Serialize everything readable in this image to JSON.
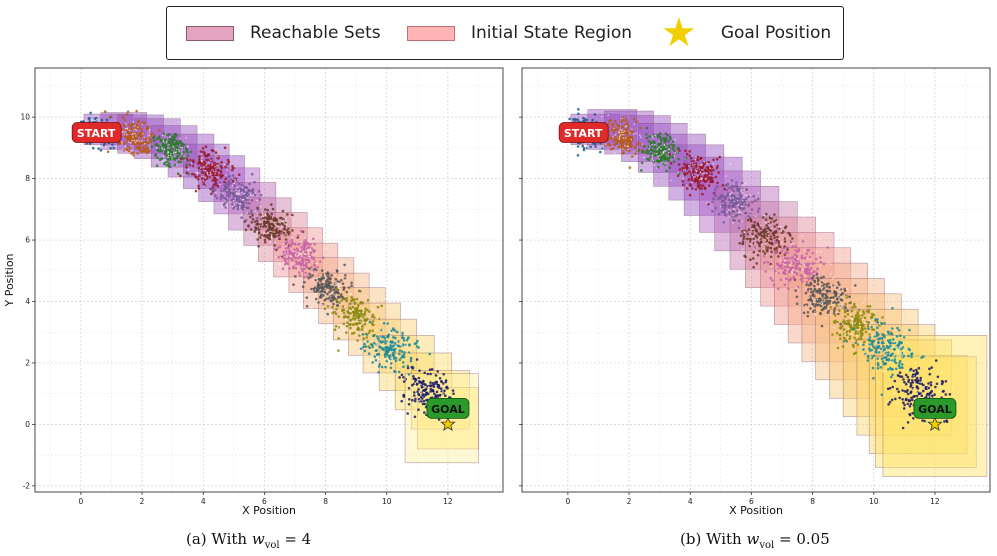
{
  "legend": {
    "items": [
      {
        "label": "Reachable Sets",
        "color": "#e4a4c0",
        "border": "#8a5a70"
      },
      {
        "label": "Initial State Region",
        "color": "#ffb3b3",
        "border": "#c07070"
      },
      {
        "label": "Goal Position",
        "color": "#f2cf00",
        "icon": "star-icon"
      }
    ]
  },
  "chart_data": [
    {
      "type": "scatter",
      "xlabel": "X Position",
      "ylabel": "Y Position",
      "xlim": [
        -1.5,
        13.8
      ],
      "ylim": [
        -2.2,
        11.6
      ],
      "xticks": [
        0,
        2,
        4,
        6,
        8,
        10,
        12
      ],
      "yticks": [
        -2,
        0,
        2,
        4,
        6,
        8,
        10
      ],
      "grid": true,
      "start": {
        "label": "START",
        "x": 0.5,
        "y": 9.5
      },
      "goal": {
        "label": "GOAL",
        "x": 12,
        "y": 0
      },
      "caption": {
        "prefix": "(a) With",
        "var": "w",
        "sub": "vol",
        "rhs": "= 4"
      },
      "cluster_colors": [
        "#1f5a8a",
        "#b85a18",
        "#2a7a2a",
        "#9a1a2a",
        "#7a5a9a",
        "#6a3a2a",
        "#c864a8",
        "#565656",
        "#8a8a10",
        "#1a8a9a",
        "#1a1a6a"
      ],
      "clusters": [
        {
          "x": 0.55,
          "y": 9.5,
          "spread": 0.32
        },
        {
          "x": 1.75,
          "y": 9.35,
          "spread": 0.33
        },
        {
          "x": 2.95,
          "y": 8.95,
          "spread": 0.34
        },
        {
          "x": 4.15,
          "y": 8.3,
          "spread": 0.35
        },
        {
          "x": 5.2,
          "y": 7.45,
          "spread": 0.36
        },
        {
          "x": 6.2,
          "y": 6.45,
          "spread": 0.37
        },
        {
          "x": 7.15,
          "y": 5.55,
          "spread": 0.38
        },
        {
          "x": 8.05,
          "y": 4.45,
          "spread": 0.39
        },
        {
          "x": 9.05,
          "y": 3.5,
          "spread": 0.4
        },
        {
          "x": 10.1,
          "y": 2.5,
          "spread": 0.42
        },
        {
          "x": 11.35,
          "y": 1.05,
          "spread": 0.45
        }
      ],
      "boxes": [
        {
          "cx": 0.9,
          "cy": 9.6,
          "w": 1.6,
          "h": 1.0,
          "color": "#9a50c0"
        },
        {
          "cx": 1.4,
          "cy": 9.55,
          "w": 1.5,
          "h": 1.2,
          "color": "#9a50c0"
        },
        {
          "cx": 1.95,
          "cy": 9.45,
          "w": 1.5,
          "h": 1.25,
          "color": "#9a50c0"
        },
        {
          "cx": 2.5,
          "cy": 9.3,
          "w": 1.5,
          "h": 1.3,
          "color": "#9a50c0"
        },
        {
          "cx": 3.05,
          "cy": 9.05,
          "w": 1.5,
          "h": 1.35,
          "color": "#9a50c0"
        },
        {
          "cx": 3.6,
          "cy": 8.75,
          "w": 1.5,
          "h": 1.4,
          "color": "#9a50c0"
        },
        {
          "cx": 4.1,
          "cy": 8.4,
          "w": 1.5,
          "h": 1.45,
          "color": "#9a50c0"
        },
        {
          "cx": 4.6,
          "cy": 8.0,
          "w": 1.5,
          "h": 1.5,
          "color": "#9a50c0"
        },
        {
          "cx": 5.1,
          "cy": 7.6,
          "w": 1.5,
          "h": 1.5,
          "color": "#b060c8"
        },
        {
          "cx": 5.6,
          "cy": 7.1,
          "w": 1.55,
          "h": 1.55,
          "color": "#b86ab8"
        },
        {
          "cx": 6.1,
          "cy": 6.6,
          "w": 1.55,
          "h": 1.55,
          "color": "#c87aa8"
        },
        {
          "cx": 6.6,
          "cy": 6.1,
          "w": 1.6,
          "h": 1.6,
          "color": "#e08a9a"
        },
        {
          "cx": 7.1,
          "cy": 5.6,
          "w": 1.6,
          "h": 1.6,
          "color": "#ef9696"
        },
        {
          "cx": 7.6,
          "cy": 5.1,
          "w": 1.6,
          "h": 1.6,
          "color": "#f2a090"
        },
        {
          "cx": 8.1,
          "cy": 4.6,
          "w": 1.65,
          "h": 1.65,
          "color": "#f4aa8a"
        },
        {
          "cx": 8.6,
          "cy": 4.1,
          "w": 1.65,
          "h": 1.65,
          "color": "#f6b684"
        },
        {
          "cx": 9.1,
          "cy": 3.6,
          "w": 1.7,
          "h": 1.7,
          "color": "#f8c27e"
        },
        {
          "cx": 9.6,
          "cy": 3.1,
          "w": 1.7,
          "h": 1.7,
          "color": "#fac878"
        },
        {
          "cx": 10.1,
          "cy": 2.55,
          "w": 1.75,
          "h": 1.75,
          "color": "#fbd070"
        },
        {
          "cx": 10.65,
          "cy": 2.0,
          "w": 1.8,
          "h": 1.8,
          "color": "#fcd86a"
        },
        {
          "cx": 11.2,
          "cy": 1.4,
          "w": 1.85,
          "h": 1.85,
          "color": "#fddc68"
        },
        {
          "cx": 11.75,
          "cy": 0.8,
          "w": 1.9,
          "h": 1.9,
          "color": "#fee066"
        },
        {
          "cx": 12.0,
          "cy": 0.2,
          "w": 2.0,
          "h": 2.0,
          "color": "#fee466"
        },
        {
          "cx": 11.8,
          "cy": 0.2,
          "w": 2.4,
          "h": 2.9,
          "color": "#fff0a0"
        }
      ]
    },
    {
      "type": "scatter",
      "xlabel": "X Position",
      "ylabel": "",
      "xlim": [
        -1.5,
        13.8
      ],
      "ylim": [
        -2.2,
        11.6
      ],
      "xticks": [
        0,
        2,
        4,
        6,
        8,
        10,
        12
      ],
      "yticks": [
        -2,
        0,
        2,
        4,
        6,
        8,
        10
      ],
      "grid": true,
      "start": {
        "label": "START",
        "x": 0.5,
        "y": 9.5
      },
      "goal": {
        "label": "GOAL",
        "x": 12,
        "y": 0
      },
      "caption": {
        "prefix": "(b) With",
        "var": "w",
        "sub": "vol",
        "rhs": "= 0.05"
      },
      "cluster_colors": [
        "#1f5a8a",
        "#b85a18",
        "#2a7a2a",
        "#9a1a2a",
        "#7a5a9a",
        "#6a3a2a",
        "#c864a8",
        "#565656",
        "#8a8a10",
        "#1a8a9a",
        "#1a1a6a"
      ],
      "clusters": [
        {
          "x": 0.55,
          "y": 9.5,
          "spread": 0.32
        },
        {
          "x": 1.8,
          "y": 9.35,
          "spread": 0.33
        },
        {
          "x": 3.05,
          "y": 8.9,
          "spread": 0.34
        },
        {
          "x": 4.3,
          "y": 8.2,
          "spread": 0.36
        },
        {
          "x": 5.45,
          "y": 7.25,
          "spread": 0.38
        },
        {
          "x": 6.45,
          "y": 6.15,
          "spread": 0.4
        },
        {
          "x": 7.45,
          "y": 5.15,
          "spread": 0.42
        },
        {
          "x": 8.4,
          "y": 4.15,
          "spread": 0.44
        },
        {
          "x": 9.45,
          "y": 3.3,
          "spread": 0.46
        },
        {
          "x": 10.45,
          "y": 2.45,
          "spread": 0.48
        },
        {
          "x": 11.45,
          "y": 1.0,
          "spread": 0.52
        }
      ],
      "boxes": [
        {
          "cx": 0.9,
          "cy": 9.6,
          "w": 1.6,
          "h": 1.0,
          "color": "#9a50c0"
        },
        {
          "cx": 1.45,
          "cy": 9.6,
          "w": 1.6,
          "h": 1.3,
          "color": "#9a50c0"
        },
        {
          "cx": 2.0,
          "cy": 9.5,
          "w": 1.6,
          "h": 1.4,
          "color": "#9a50c0"
        },
        {
          "cx": 2.55,
          "cy": 9.3,
          "w": 1.6,
          "h": 1.5,
          "color": "#9a50c0"
        },
        {
          "cx": 3.1,
          "cy": 9.0,
          "w": 1.6,
          "h": 1.6,
          "color": "#9a50c0"
        },
        {
          "cx": 3.65,
          "cy": 8.6,
          "w": 1.7,
          "h": 1.7,
          "color": "#9a50c0"
        },
        {
          "cx": 4.2,
          "cy": 8.2,
          "w": 1.8,
          "h": 1.8,
          "color": "#9a50c0"
        },
        {
          "cx": 4.75,
          "cy": 7.75,
          "w": 1.9,
          "h": 1.9,
          "color": "#9a50c0"
        },
        {
          "cx": 5.3,
          "cy": 7.25,
          "w": 2.0,
          "h": 2.0,
          "color": "#b060c8"
        },
        {
          "cx": 5.85,
          "cy": 6.7,
          "w": 2.1,
          "h": 2.1,
          "color": "#b86ab8"
        },
        {
          "cx": 6.4,
          "cy": 6.15,
          "w": 2.2,
          "h": 2.2,
          "color": "#c87aa8"
        },
        {
          "cx": 6.95,
          "cy": 5.6,
          "w": 2.3,
          "h": 2.3,
          "color": "#e08a9a"
        },
        {
          "cx": 7.5,
          "cy": 5.05,
          "w": 2.4,
          "h": 2.4,
          "color": "#ef9696"
        },
        {
          "cx": 8.0,
          "cy": 4.5,
          "w": 2.5,
          "h": 2.5,
          "color": "#f2a090"
        },
        {
          "cx": 8.5,
          "cy": 3.95,
          "w": 2.6,
          "h": 2.6,
          "color": "#f4aa8a"
        },
        {
          "cx": 9.0,
          "cy": 3.4,
          "w": 2.7,
          "h": 2.7,
          "color": "#f6b684"
        },
        {
          "cx": 9.5,
          "cy": 2.85,
          "w": 2.8,
          "h": 2.8,
          "color": "#f8c27e"
        },
        {
          "cx": 10.0,
          "cy": 2.3,
          "w": 2.9,
          "h": 2.9,
          "color": "#fac878"
        },
        {
          "cx": 10.5,
          "cy": 1.75,
          "w": 3.0,
          "h": 3.0,
          "color": "#fbd070"
        },
        {
          "cx": 11.0,
          "cy": 1.2,
          "w": 3.1,
          "h": 3.1,
          "color": "#fcd86a"
        },
        {
          "cx": 11.45,
          "cy": 0.65,
          "w": 3.2,
          "h": 3.2,
          "color": "#fddc68"
        },
        {
          "cx": 11.7,
          "cy": 0.4,
          "w": 3.3,
          "h": 3.6,
          "color": "#fee066"
        },
        {
          "cx": 12.0,
          "cy": 0.6,
          "w": 3.4,
          "h": 4.6,
          "color": "#fee466"
        }
      ]
    }
  ]
}
